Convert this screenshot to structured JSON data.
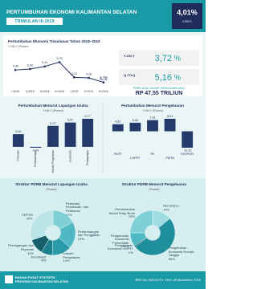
{
  "header": {
    "title": "PERTUMBUHAN EKONOMI KALIMANTAN SELATAN",
    "period": "TRIWULAN III-2019",
    "ctoc_value": "4,01%",
    "ctoc_label": "c-to-c"
  },
  "summary": {
    "yoy_label": "Y-ON-Y",
    "yoy_value": "3,72",
    "qtoq_label": "Q-TO-Q",
    "qtoq_value": "5,16",
    "unit": "%",
    "pdrb_label": "PDRB ATAS DASAR HARGA BERLAKU",
    "pdrb_value": "RP 47,55 TRILIUN"
  },
  "chart_data": [
    {
      "type": "line",
      "title": "Pertumbuhan Ekonomi Triwulanan Tahun 2018–2019",
      "subtitle": "Y-ON-Y (Persen)",
      "categories": [
        "I-2018",
        "II-2018",
        "III-2018",
        "IV-2018",
        "I-2019",
        "II-2019",
        "III-2019"
      ],
      "values": [
        4.98,
        5.08,
        5.34,
        5.78,
        4.23,
        4.18,
        3.72
      ],
      "value_labels": [
        "4,98",
        "5,08",
        "5,34",
        "5,78",
        "4,23",
        "4,18",
        "3,72"
      ],
      "color": "#1f2d5a"
    },
    {
      "type": "bar",
      "title": "Pertumbuhan Menurut Lapangan Usaha",
      "subtitle": "Y-ON-Y (Persen)",
      "categories": [
        "Pertanian",
        "Pertambangan",
        "Industri Pengolahan",
        "Konstruksi",
        "Perdagangan"
      ],
      "values": [
        3.06,
        -0.21,
        5.07,
        5.87,
        6.77
      ],
      "value_labels": [
        "3,06",
        "-0,21",
        "5,07",
        "5,87",
        "6,77"
      ],
      "color": "#243a6b"
    },
    {
      "type": "bar",
      "title": "Pertumbuhan Menurut Pengeluaran",
      "subtitle": "Y-ON-Y (Persen)",
      "categories": [
        "PKRT",
        "LNPRT",
        "PK",
        "PMTB",
        "EKSPOR"
      ],
      "values": [
        4.82,
        5.84,
        7.61,
        8.51,
        -11.2
      ],
      "value_labels": [
        "4,82",
        "5,84",
        "7,61",
        "8,51",
        "-11,20"
      ],
      "color": "#243a6b"
    },
    {
      "type": "pie",
      "title": "Struktur PDRB Menurut Lapangan Usaha",
      "subtitle": "(Persen)",
      "categories": [
        "Pertanian, Kehutanan, dan Perikanan",
        "Pertambangan dan Penggalian",
        "Industri Pengolahan",
        "Konstruksi",
        "Perdagangan dan Reparasi",
        "Lainnya"
      ],
      "values": [
        17,
        19,
        14,
        8,
        11,
        30
      ],
      "value_labels": [
        "17%",
        "19%",
        "14%",
        "8%",
        "11%",
        "30%"
      ],
      "colors": [
        "#7fd0d6",
        "#4fb8c2",
        "#2a9aa6",
        "#1c7f8c",
        "#16606e",
        "#b9e4e8"
      ]
    },
    {
      "type": "pie",
      "title": "Struktur PDRB Menurut Pengeluaran",
      "subtitle": "(Persen)",
      "categories": [
        "Net Ekspor",
        "Pengeluaran Konsumsi Rumah Tangga",
        "Pengeluaran Konsumsi LNPRT",
        "Pengeluaran Konsumsi Pemerintah",
        "Pembentukan Modal Tetap Bruto"
      ],
      "values": [
        14,
        50,
        1,
        10,
        25
      ],
      "value_labels": [
        "14%",
        "50%",
        "1%",
        "10%",
        "25%"
      ],
      "colors": [
        "#9fdde2",
        "#1f8f9c",
        "#16606e",
        "#4fb8c2",
        "#7fd0d6"
      ]
    }
  ],
  "footer": {
    "org": "BADAN PUSAT STATISTIK",
    "org_sub": "PROVINSI KALIMANTAN SELATAN",
    "release": "BRS No. 061/11/Th. XXIII, 05 November 2019"
  }
}
